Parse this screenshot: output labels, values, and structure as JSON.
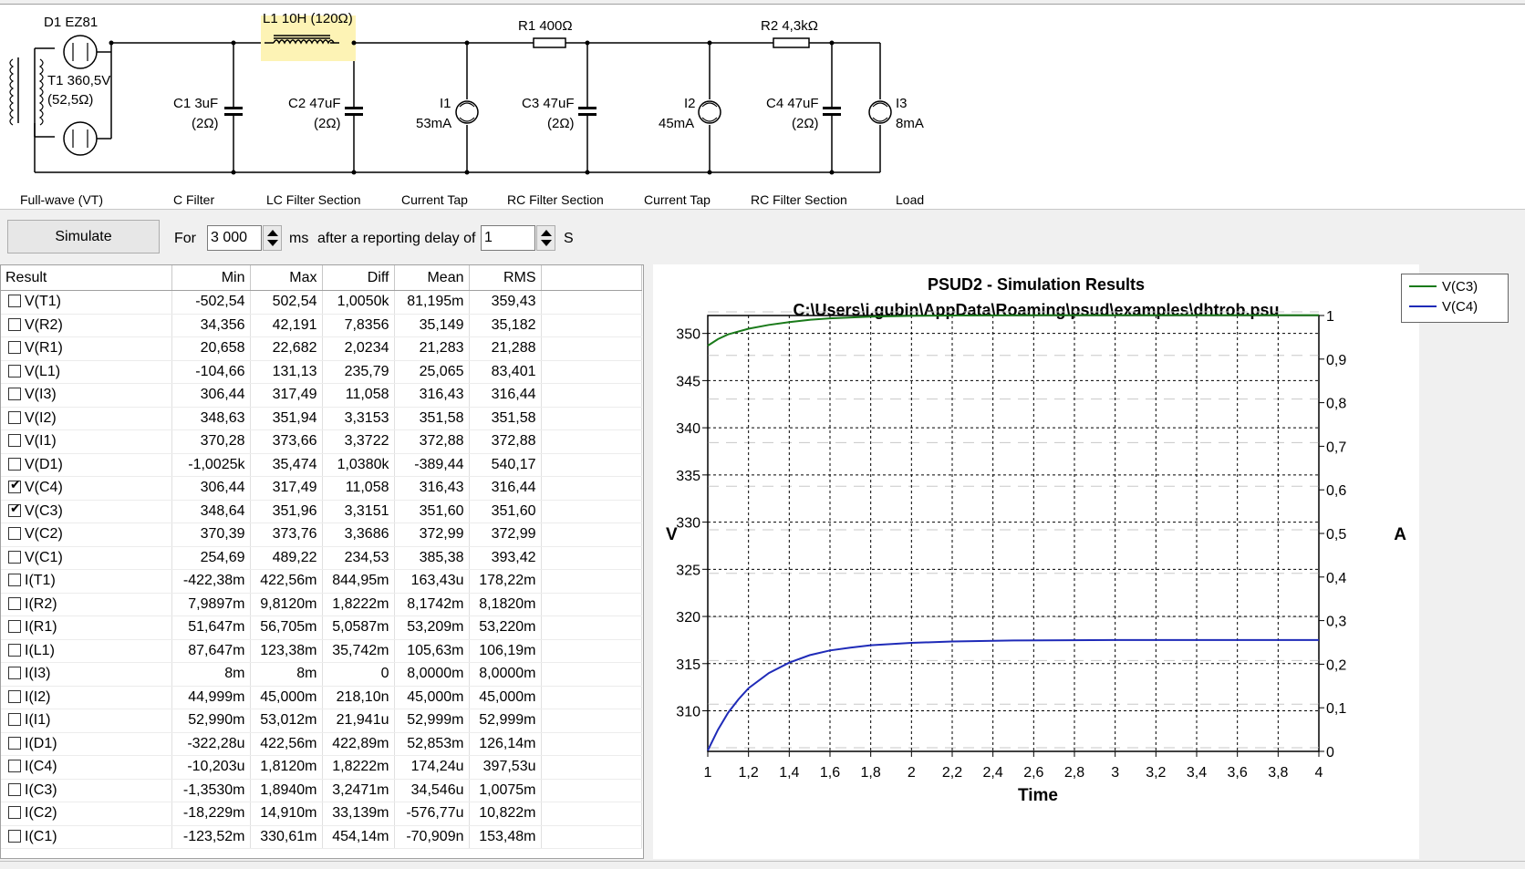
{
  "schematic": {
    "components": {
      "d1": "D1 EZ81",
      "l1": "L1 10H (120Ω)",
      "r1": "R1 400Ω",
      "r2": "R2 4,3kΩ",
      "t1_line1": "T1 360,5V",
      "t1_line2": "(52,5Ω)",
      "c1_line1": "C1 3uF",
      "c1_line2": "(2Ω)",
      "c2_line1": "C2 47uF",
      "c2_line2": "(2Ω)",
      "i1_line1": "I1",
      "i1_line2": "53mA",
      "c3_line1": "C3 47uF",
      "c3_line2": "(2Ω)",
      "i2_line1": "I2",
      "i2_line2": "45mA",
      "c4_line1": "C4 47uF",
      "c4_line2": "(2Ω)",
      "i3_line1": "I3",
      "i3_line2": "8mA"
    },
    "sections": [
      "Full-wave (VT)",
      "C Filter",
      "LC Filter Section",
      "Current Tap",
      "RC Filter Section",
      "Current Tap",
      "RC Filter Section",
      "Load"
    ]
  },
  "toolbar": {
    "simulate_label": "Simulate",
    "for_label": "For",
    "duration_value": "3 000",
    "ms_label": "ms",
    "delay_label": "after a reporting delay of",
    "delay_value": "1",
    "s_label": "S"
  },
  "results": {
    "headers": [
      "Result",
      "Min",
      "Max",
      "Diff",
      "Mean",
      "RMS"
    ],
    "rows": [
      {
        "name": "V(T1)",
        "checked": false,
        "min": "-502,54",
        "max": "502,54",
        "diff": "1,0050k",
        "mean": "81,195m",
        "rms": "359,43"
      },
      {
        "name": "V(R2)",
        "checked": false,
        "min": "34,356",
        "max": "42,191",
        "diff": "7,8356",
        "mean": "35,149",
        "rms": "35,182"
      },
      {
        "name": "V(R1)",
        "checked": false,
        "min": "20,658",
        "max": "22,682",
        "diff": "2,0234",
        "mean": "21,283",
        "rms": "21,288"
      },
      {
        "name": "V(L1)",
        "checked": false,
        "min": "-104,66",
        "max": "131,13",
        "diff": "235,79",
        "mean": "25,065",
        "rms": "83,401"
      },
      {
        "name": "V(I3)",
        "checked": false,
        "min": "306,44",
        "max": "317,49",
        "diff": "11,058",
        "mean": "316,43",
        "rms": "316,44"
      },
      {
        "name": "V(I2)",
        "checked": false,
        "min": "348,63",
        "max": "351,94",
        "diff": "3,3153",
        "mean": "351,58",
        "rms": "351,58"
      },
      {
        "name": "V(I1)",
        "checked": false,
        "min": "370,28",
        "max": "373,66",
        "diff": "3,3722",
        "mean": "372,88",
        "rms": "372,88"
      },
      {
        "name": "V(D1)",
        "checked": false,
        "min": "-1,0025k",
        "max": "35,474",
        "diff": "1,0380k",
        "mean": "-389,44",
        "rms": "540,17"
      },
      {
        "name": "V(C4)",
        "checked": true,
        "min": "306,44",
        "max": "317,49",
        "diff": "11,058",
        "mean": "316,43",
        "rms": "316,44"
      },
      {
        "name": "V(C3)",
        "checked": true,
        "min": "348,64",
        "max": "351,96",
        "diff": "3,3151",
        "mean": "351,60",
        "rms": "351,60"
      },
      {
        "name": "V(C2)",
        "checked": false,
        "min": "370,39",
        "max": "373,76",
        "diff": "3,3686",
        "mean": "372,99",
        "rms": "372,99"
      },
      {
        "name": "V(C1)",
        "checked": false,
        "min": "254,69",
        "max": "489,22",
        "diff": "234,53",
        "mean": "385,38",
        "rms": "393,42"
      },
      {
        "name": "I(T1)",
        "checked": false,
        "min": "-422,38m",
        "max": "422,56m",
        "diff": "844,95m",
        "mean": "163,43u",
        "rms": "178,22m"
      },
      {
        "name": "I(R2)",
        "checked": false,
        "min": "7,9897m",
        "max": "9,8120m",
        "diff": "1,8222m",
        "mean": "8,1742m",
        "rms": "8,1820m"
      },
      {
        "name": "I(R1)",
        "checked": false,
        "min": "51,647m",
        "max": "56,705m",
        "diff": "5,0587m",
        "mean": "53,209m",
        "rms": "53,220m"
      },
      {
        "name": "I(L1)",
        "checked": false,
        "min": "87,647m",
        "max": "123,38m",
        "diff": "35,742m",
        "mean": "105,63m",
        "rms": "106,19m"
      },
      {
        "name": "I(I3)",
        "checked": false,
        "min": "8m",
        "max": "8m",
        "diff": "0",
        "mean": "8,0000m",
        "rms": "8,0000m"
      },
      {
        "name": "I(I2)",
        "checked": false,
        "min": "44,999m",
        "max": "45,000m",
        "diff": "218,10n",
        "mean": "45,000m",
        "rms": "45,000m"
      },
      {
        "name": "I(I1)",
        "checked": false,
        "min": "52,990m",
        "max": "53,012m",
        "diff": "21,941u",
        "mean": "52,999m",
        "rms": "52,999m"
      },
      {
        "name": "I(D1)",
        "checked": false,
        "min": "-322,28u",
        "max": "422,56m",
        "diff": "422,89m",
        "mean": "52,853m",
        "rms": "126,14m"
      },
      {
        "name": "I(C4)",
        "checked": false,
        "min": "-10,203u",
        "max": "1,8120m",
        "diff": "1,8222m",
        "mean": "174,24u",
        "rms": "397,53u"
      },
      {
        "name": "I(C3)",
        "checked": false,
        "min": "-1,3530m",
        "max": "1,8940m",
        "diff": "3,2471m",
        "mean": "34,546u",
        "rms": "1,0075m"
      },
      {
        "name": "I(C2)",
        "checked": false,
        "min": "-18,229m",
        "max": "14,910m",
        "diff": "33,139m",
        "mean": "-576,77u",
        "rms": "10,822m"
      },
      {
        "name": "I(C1)",
        "checked": false,
        "min": "-123,52m",
        "max": "330,61m",
        "diff": "454,14m",
        "mean": "-70,909n",
        "rms": "153,48m"
      }
    ]
  },
  "chart_data": {
    "type": "line",
    "title": "PSUD2 - Simulation Results",
    "subtitle": "C:\\Users\\i.gubin\\AppData\\Roaming\\psud\\examples\\dhtrob.psu",
    "xlabel": "Time",
    "ylabel": "V",
    "y2label": "A",
    "xlim": [
      1,
      4
    ],
    "ylim": [
      305.7,
      351.9
    ],
    "y2lim": [
      0,
      1
    ],
    "xticks": [
      "1",
      "1,2",
      "1,4",
      "1,6",
      "1,8",
      "2",
      "2,2",
      "2,4",
      "2,6",
      "2,8",
      "3",
      "3,2",
      "3,4",
      "3,6",
      "3,8",
      "4"
    ],
    "yticks": [
      "310",
      "315",
      "320",
      "325",
      "330",
      "335",
      "340",
      "345",
      "350"
    ],
    "y2ticks": [
      "0",
      "0,1",
      "0,2",
      "0,3",
      "0,4",
      "0,5",
      "0,6",
      "0,7",
      "0,8",
      "0,9",
      "1"
    ],
    "grid": true,
    "legend_position": "top-right",
    "series": [
      {
        "name": "V(C3)",
        "color": "#1a7a1a",
        "x": [
          1,
          1.05,
          1.1,
          1.2,
          1.3,
          1.4,
          1.5,
          1.6,
          1.8,
          2.0,
          2.2,
          2.5,
          3.0,
          3.5,
          4.0
        ],
        "values": [
          348.7,
          349.4,
          349.9,
          350.5,
          350.9,
          351.2,
          351.45,
          351.6,
          351.78,
          351.86,
          351.9,
          351.93,
          351.94,
          351.94,
          351.94
        ]
      },
      {
        "name": "V(C4)",
        "color": "#1f2bb8",
        "x": [
          1,
          1.05,
          1.1,
          1.15,
          1.2,
          1.3,
          1.4,
          1.5,
          1.6,
          1.7,
          1.8,
          2.0,
          2.2,
          2.5,
          3.0,
          3.5,
          4.0
        ],
        "values": [
          305.8,
          308.0,
          309.8,
          311.2,
          312.4,
          314.0,
          315.1,
          315.9,
          316.4,
          316.7,
          316.95,
          317.2,
          317.35,
          317.45,
          317.5,
          317.5,
          317.5
        ]
      }
    ]
  }
}
